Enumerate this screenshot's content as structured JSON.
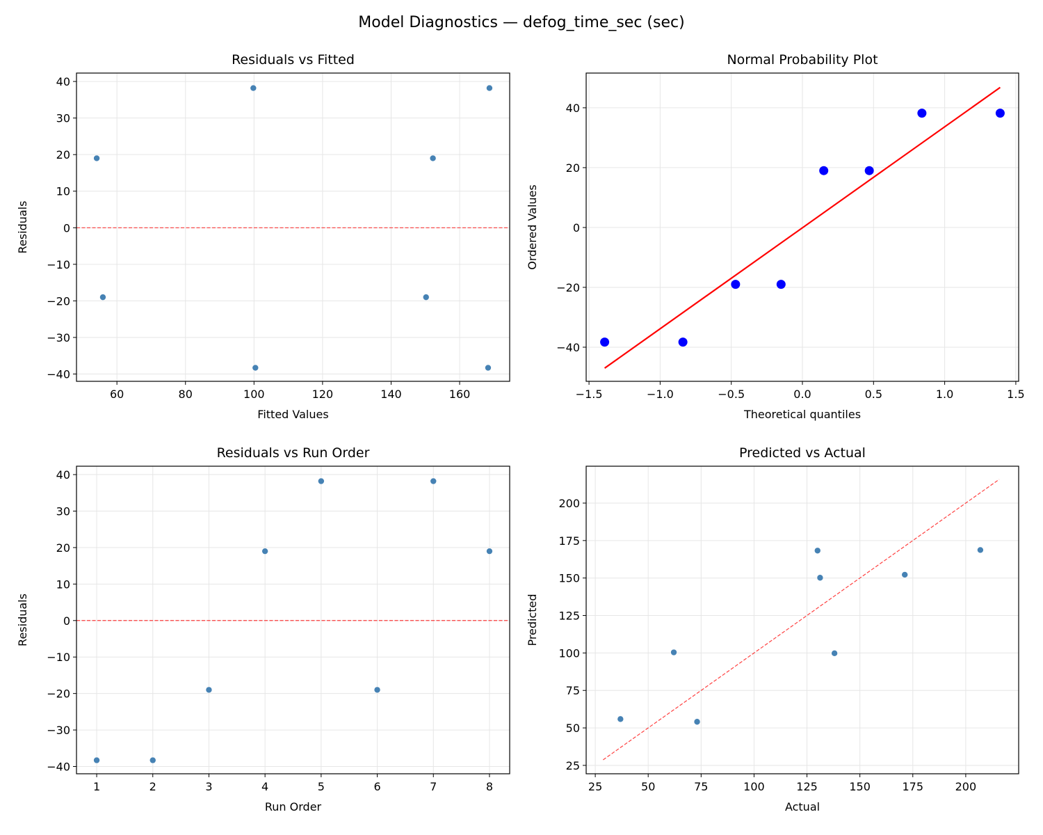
{
  "suptitle": "Model Diagnostics — defog_time_sec (sec)",
  "colors": {
    "point": "#4682b4",
    "qq_point": "#0000ff",
    "ref_line": "#ff0000",
    "grid": "#e6e6e6"
  },
  "chart_data": [
    {
      "type": "scatter",
      "title": "Residuals vs Fitted",
      "xlabel": "Fitted Values",
      "ylabel": "Residuals",
      "xlim": [
        48.2,
        174.6
      ],
      "ylim": [
        -42.0,
        42.3
      ],
      "xticks": [
        60,
        80,
        100,
        120,
        140,
        160
      ],
      "yticks": [
        -40,
        -30,
        -20,
        -10,
        0,
        10,
        20,
        30,
        40
      ],
      "grid": true,
      "x": [
        54.1,
        55.9,
        99.8,
        100.4,
        150.2,
        152.2,
        168.3,
        168.7
      ],
      "y": [
        19.0,
        -19.0,
        38.2,
        -38.3,
        -19.0,
        19.0,
        -38.3,
        38.2
      ],
      "reference_line": {
        "type": "horizontal",
        "y": 0,
        "style": "dashed"
      }
    },
    {
      "type": "scatter",
      "title": "Normal Probability Plot",
      "xlabel": "Theoretical quantiles",
      "ylabel": "Ordered Values",
      "xlim": [
        -1.52,
        1.52
      ],
      "ylim": [
        -51.4,
        51.6
      ],
      "xticks": [
        -1.5,
        -1.0,
        -0.5,
        0.0,
        0.5,
        1.0,
        1.5
      ],
      "xtick_labels": [
        "−1.5",
        "−1.0",
        "−0.5",
        "0.0",
        "0.5",
        "1.0",
        "1.5"
      ],
      "yticks": [
        -40,
        -20,
        0,
        20,
        40
      ],
      "grid": true,
      "x": [
        -1.39,
        -0.84,
        -0.47,
        -0.15,
        0.15,
        0.47,
        0.84,
        1.39
      ],
      "y": [
        -38.3,
        -38.3,
        -19.0,
        -19.0,
        19.0,
        19.0,
        38.2,
        38.2
      ],
      "reference_line": {
        "type": "segment",
        "x": [
          -1.39,
          1.39
        ],
        "y": [
          -47.0,
          46.8
        ],
        "style": "solid"
      }
    },
    {
      "type": "scatter",
      "title": "Residuals vs Run Order",
      "xlabel": "Run Order",
      "ylabel": "Residuals",
      "xlim": [
        0.64,
        8.36
      ],
      "ylim": [
        -42.0,
        42.3
      ],
      "xticks": [
        1,
        2,
        3,
        4,
        5,
        6,
        7,
        8
      ],
      "yticks": [
        -40,
        -30,
        -20,
        -10,
        0,
        10,
        20,
        30,
        40
      ],
      "grid": true,
      "x": [
        1,
        2,
        3,
        4,
        5,
        6,
        7,
        8
      ],
      "y": [
        -38.3,
        -38.3,
        -19.0,
        19.0,
        38.2,
        -19.0,
        38.2,
        19.0
      ],
      "reference_line": {
        "type": "horizontal",
        "y": 0,
        "style": "dashed"
      }
    },
    {
      "type": "scatter",
      "title": "Predicted vs Actual",
      "xlabel": "Actual",
      "ylabel": "Predicted",
      "xlim": [
        20.7,
        225.0
      ],
      "ylim": [
        19.4,
        224.6
      ],
      "xticks": [
        25,
        50,
        75,
        100,
        125,
        150,
        175,
        200
      ],
      "yticks": [
        25,
        50,
        75,
        100,
        125,
        150,
        175,
        200
      ],
      "grid": true,
      "x": [
        73.1,
        36.9,
        138.0,
        62.1,
        131.2,
        171.2,
        130.0,
        206.9
      ],
      "y": [
        54.1,
        55.9,
        99.8,
        100.4,
        150.2,
        152.2,
        168.3,
        168.7
      ],
      "reference_line": {
        "type": "segment",
        "x": [
          28.7,
          215.8
        ],
        "y": [
          28.7,
          215.8
        ],
        "style": "dashed"
      }
    }
  ]
}
